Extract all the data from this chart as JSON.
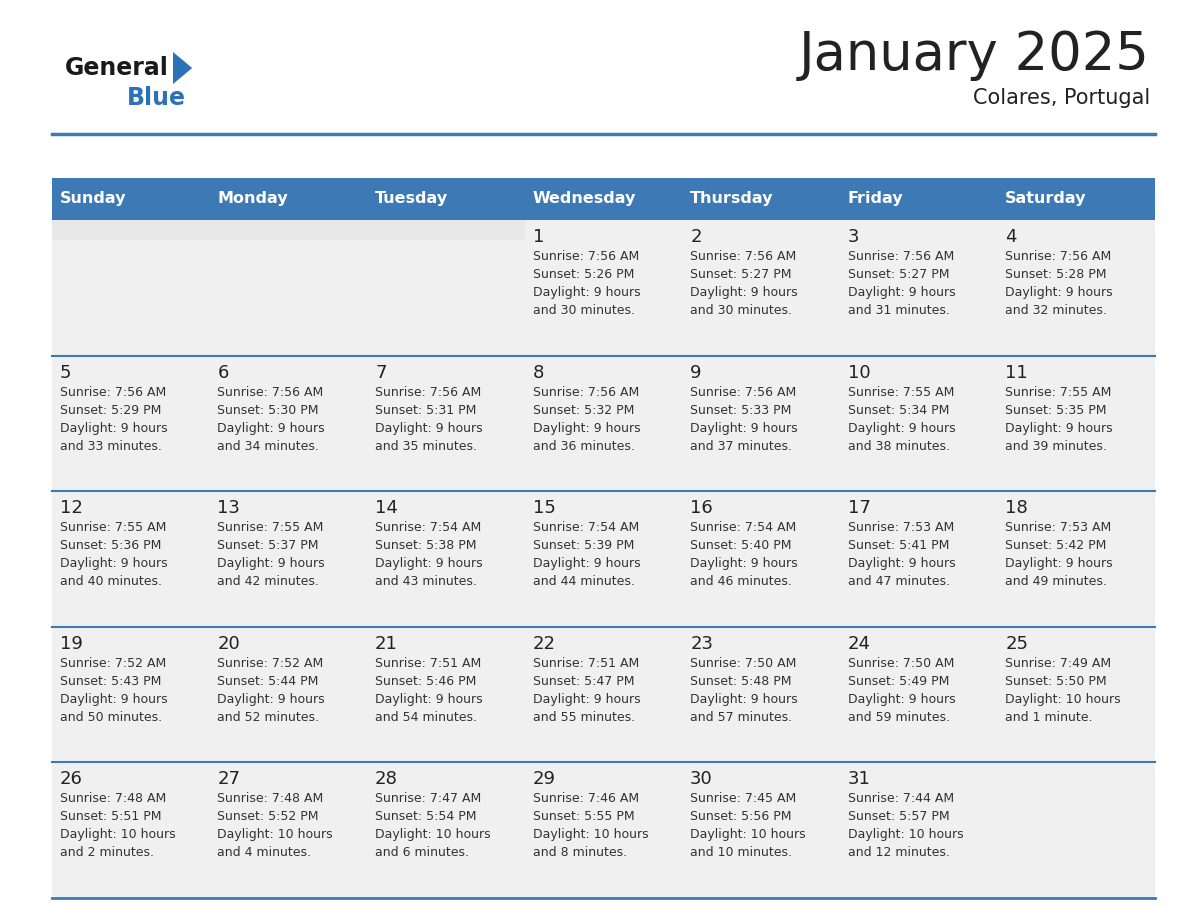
{
  "title": "January 2025",
  "subtitle": "Colares, Portugal",
  "days_of_week": [
    "Sunday",
    "Monday",
    "Tuesday",
    "Wednesday",
    "Thursday",
    "Friday",
    "Saturday"
  ],
  "header_bg": "#3d7ab5",
  "header_text": "#ffffff",
  "cell_bg": "#f0f0f0",
  "cell_bg_empty_top": "#e8e8e8",
  "day_num_color": "#222222",
  "cell_text_color": "#333333",
  "divider_color": "#3d7ab5",
  "logo_general_color": "#1a1a1a",
  "logo_blue_color": "#2b72b8",
  "logo_triangle_color": "#2b72b8",
  "weeks": [
    [
      {
        "day": null,
        "info": null
      },
      {
        "day": null,
        "info": null
      },
      {
        "day": null,
        "info": null
      },
      {
        "day": 1,
        "info": "Sunrise: 7:56 AM\nSunset: 5:26 PM\nDaylight: 9 hours\nand 30 minutes."
      },
      {
        "day": 2,
        "info": "Sunrise: 7:56 AM\nSunset: 5:27 PM\nDaylight: 9 hours\nand 30 minutes."
      },
      {
        "day": 3,
        "info": "Sunrise: 7:56 AM\nSunset: 5:27 PM\nDaylight: 9 hours\nand 31 minutes."
      },
      {
        "day": 4,
        "info": "Sunrise: 7:56 AM\nSunset: 5:28 PM\nDaylight: 9 hours\nand 32 minutes."
      }
    ],
    [
      {
        "day": 5,
        "info": "Sunrise: 7:56 AM\nSunset: 5:29 PM\nDaylight: 9 hours\nand 33 minutes."
      },
      {
        "day": 6,
        "info": "Sunrise: 7:56 AM\nSunset: 5:30 PM\nDaylight: 9 hours\nand 34 minutes."
      },
      {
        "day": 7,
        "info": "Sunrise: 7:56 AM\nSunset: 5:31 PM\nDaylight: 9 hours\nand 35 minutes."
      },
      {
        "day": 8,
        "info": "Sunrise: 7:56 AM\nSunset: 5:32 PM\nDaylight: 9 hours\nand 36 minutes."
      },
      {
        "day": 9,
        "info": "Sunrise: 7:56 AM\nSunset: 5:33 PM\nDaylight: 9 hours\nand 37 minutes."
      },
      {
        "day": 10,
        "info": "Sunrise: 7:55 AM\nSunset: 5:34 PM\nDaylight: 9 hours\nand 38 minutes."
      },
      {
        "day": 11,
        "info": "Sunrise: 7:55 AM\nSunset: 5:35 PM\nDaylight: 9 hours\nand 39 minutes."
      }
    ],
    [
      {
        "day": 12,
        "info": "Sunrise: 7:55 AM\nSunset: 5:36 PM\nDaylight: 9 hours\nand 40 minutes."
      },
      {
        "day": 13,
        "info": "Sunrise: 7:55 AM\nSunset: 5:37 PM\nDaylight: 9 hours\nand 42 minutes."
      },
      {
        "day": 14,
        "info": "Sunrise: 7:54 AM\nSunset: 5:38 PM\nDaylight: 9 hours\nand 43 minutes."
      },
      {
        "day": 15,
        "info": "Sunrise: 7:54 AM\nSunset: 5:39 PM\nDaylight: 9 hours\nand 44 minutes."
      },
      {
        "day": 16,
        "info": "Sunrise: 7:54 AM\nSunset: 5:40 PM\nDaylight: 9 hours\nand 46 minutes."
      },
      {
        "day": 17,
        "info": "Sunrise: 7:53 AM\nSunset: 5:41 PM\nDaylight: 9 hours\nand 47 minutes."
      },
      {
        "day": 18,
        "info": "Sunrise: 7:53 AM\nSunset: 5:42 PM\nDaylight: 9 hours\nand 49 minutes."
      }
    ],
    [
      {
        "day": 19,
        "info": "Sunrise: 7:52 AM\nSunset: 5:43 PM\nDaylight: 9 hours\nand 50 minutes."
      },
      {
        "day": 20,
        "info": "Sunrise: 7:52 AM\nSunset: 5:44 PM\nDaylight: 9 hours\nand 52 minutes."
      },
      {
        "day": 21,
        "info": "Sunrise: 7:51 AM\nSunset: 5:46 PM\nDaylight: 9 hours\nand 54 minutes."
      },
      {
        "day": 22,
        "info": "Sunrise: 7:51 AM\nSunset: 5:47 PM\nDaylight: 9 hours\nand 55 minutes."
      },
      {
        "day": 23,
        "info": "Sunrise: 7:50 AM\nSunset: 5:48 PM\nDaylight: 9 hours\nand 57 minutes."
      },
      {
        "day": 24,
        "info": "Sunrise: 7:50 AM\nSunset: 5:49 PM\nDaylight: 9 hours\nand 59 minutes."
      },
      {
        "day": 25,
        "info": "Sunrise: 7:49 AM\nSunset: 5:50 PM\nDaylight: 10 hours\nand 1 minute."
      }
    ],
    [
      {
        "day": 26,
        "info": "Sunrise: 7:48 AM\nSunset: 5:51 PM\nDaylight: 10 hours\nand 2 minutes."
      },
      {
        "day": 27,
        "info": "Sunrise: 7:48 AM\nSunset: 5:52 PM\nDaylight: 10 hours\nand 4 minutes."
      },
      {
        "day": 28,
        "info": "Sunrise: 7:47 AM\nSunset: 5:54 PM\nDaylight: 10 hours\nand 6 minutes."
      },
      {
        "day": 29,
        "info": "Sunrise: 7:46 AM\nSunset: 5:55 PM\nDaylight: 10 hours\nand 8 minutes."
      },
      {
        "day": 30,
        "info": "Sunrise: 7:45 AM\nSunset: 5:56 PM\nDaylight: 10 hours\nand 10 minutes."
      },
      {
        "day": 31,
        "info": "Sunrise: 7:44 AM\nSunset: 5:57 PM\nDaylight: 10 hours\nand 12 minutes."
      },
      {
        "day": null,
        "info": null
      }
    ]
  ]
}
